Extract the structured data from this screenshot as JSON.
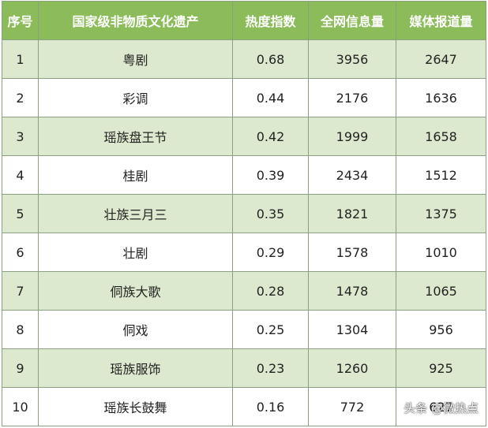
{
  "table": {
    "headers": [
      "序号",
      "国家级非物质文化遗产",
      "热度指数",
      "全网信息量",
      "媒体报道量"
    ],
    "rows": [
      [
        "1",
        "粤剧",
        "0.68",
        "3956",
        "2647"
      ],
      [
        "2",
        "彩调",
        "0.44",
        "2176",
        "1636"
      ],
      [
        "3",
        "瑶族盘王节",
        "0.42",
        "1999",
        "1658"
      ],
      [
        "4",
        "桂剧",
        "0.39",
        "2434",
        "1512"
      ],
      [
        "5",
        "壮族三月三",
        "0.35",
        "1821",
        "1375"
      ],
      [
        "6",
        "壮剧",
        "0.29",
        "1578",
        "1010"
      ],
      [
        "7",
        "侗族大歌",
        "0.28",
        "1478",
        "1065"
      ],
      [
        "8",
        "侗戏",
        "0.25",
        "1304",
        "956"
      ],
      [
        "9",
        "瑶族服饰",
        "0.23",
        "1260",
        "925"
      ],
      [
        "10",
        "瑶族长鼓舞",
        "0.16",
        "772",
        "627"
      ]
    ]
  },
  "watermark": "头条 @微热点",
  "colors": {
    "header_bg": "#8cbc5a",
    "odd_row_bg": "#dde9ce",
    "even_row_bg": "#ffffff",
    "border": "#8aa080"
  }
}
